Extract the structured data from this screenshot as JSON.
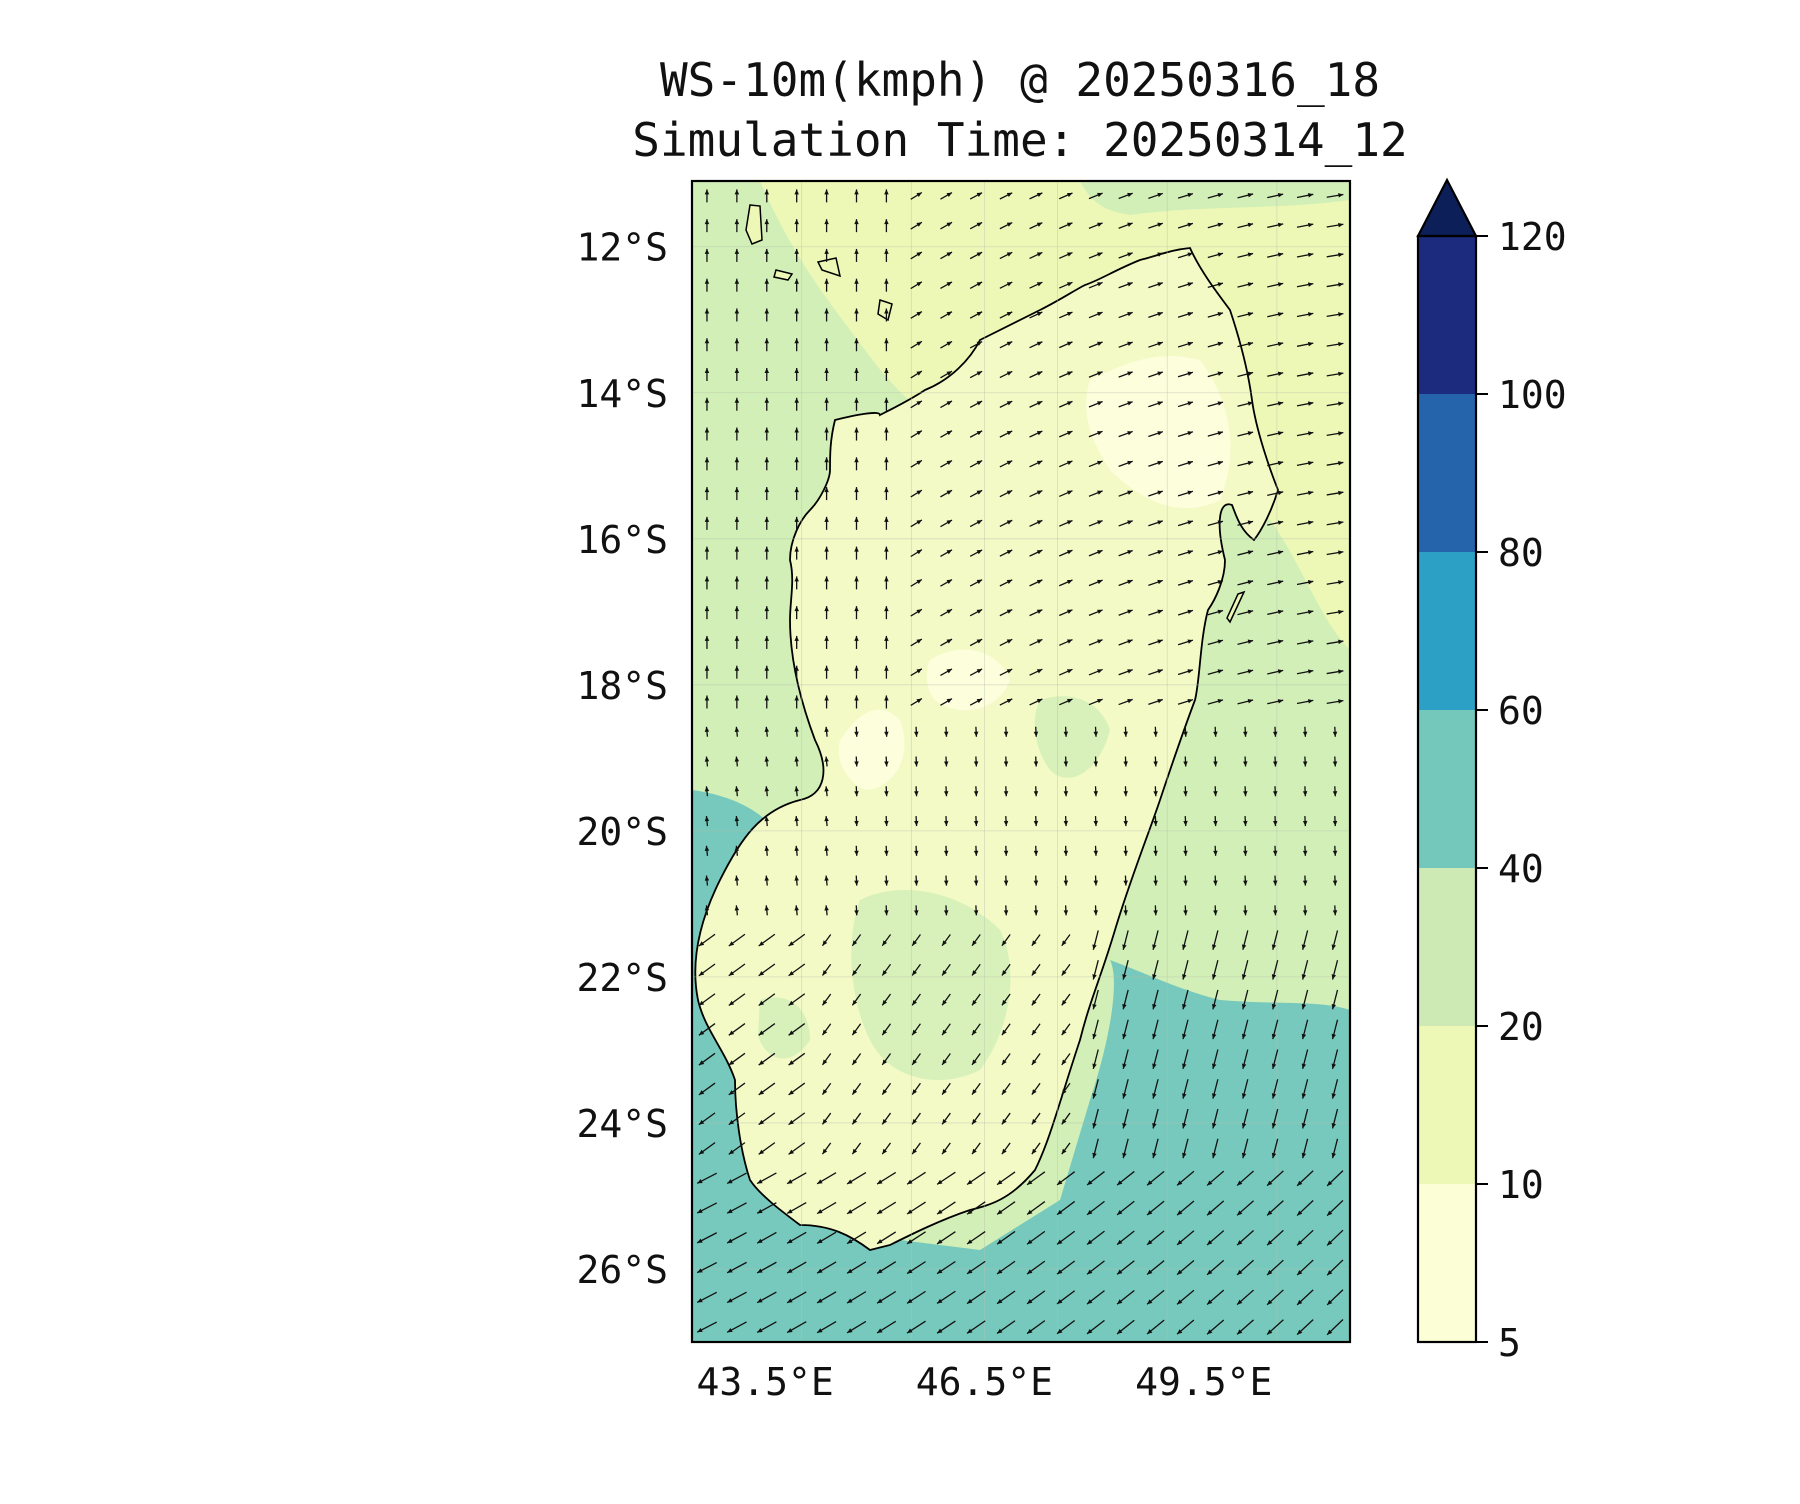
{
  "title": {
    "line1": "WS-10m(kmph) @ 20250316_18",
    "line2": "Simulation Time: 20250314_12"
  },
  "map": {
    "region": "Madagascar",
    "lat_ticks": [
      "12°S",
      "14°S",
      "16°S",
      "18°S",
      "20°S",
      "22°S",
      "24°S",
      "26°S"
    ],
    "lat_tick_values": [
      -12,
      -14,
      -16,
      -18,
      -20,
      -22,
      -24,
      -26
    ],
    "lon_ticks": [
      "43.5°E",
      "46.5°E",
      "49.5°E"
    ],
    "lon_tick_values": [
      43.5,
      46.5,
      49.5
    ],
    "lon_range": [
      42.5,
      51.5
    ],
    "lat_range": [
      -27,
      -11.1
    ],
    "field_colors": {
      "land_low": "#f3fac6",
      "land_lowest": "#fcfedc",
      "ocean_north": "#d2efb7",
      "ocean_south": "#76c9bc"
    }
  },
  "colorbar": {
    "levels": [
      "5",
      "10",
      "20",
      "40",
      "60",
      "80",
      "100",
      "120"
    ],
    "colors": [
      "#fcfed6",
      "#edf8b6",
      "#cdeab4",
      "#74c8bb",
      "#2ca1c5",
      "#2564ab",
      "#1c2b7e",
      "#0c1f59"
    ],
    "extend": "max"
  }
}
